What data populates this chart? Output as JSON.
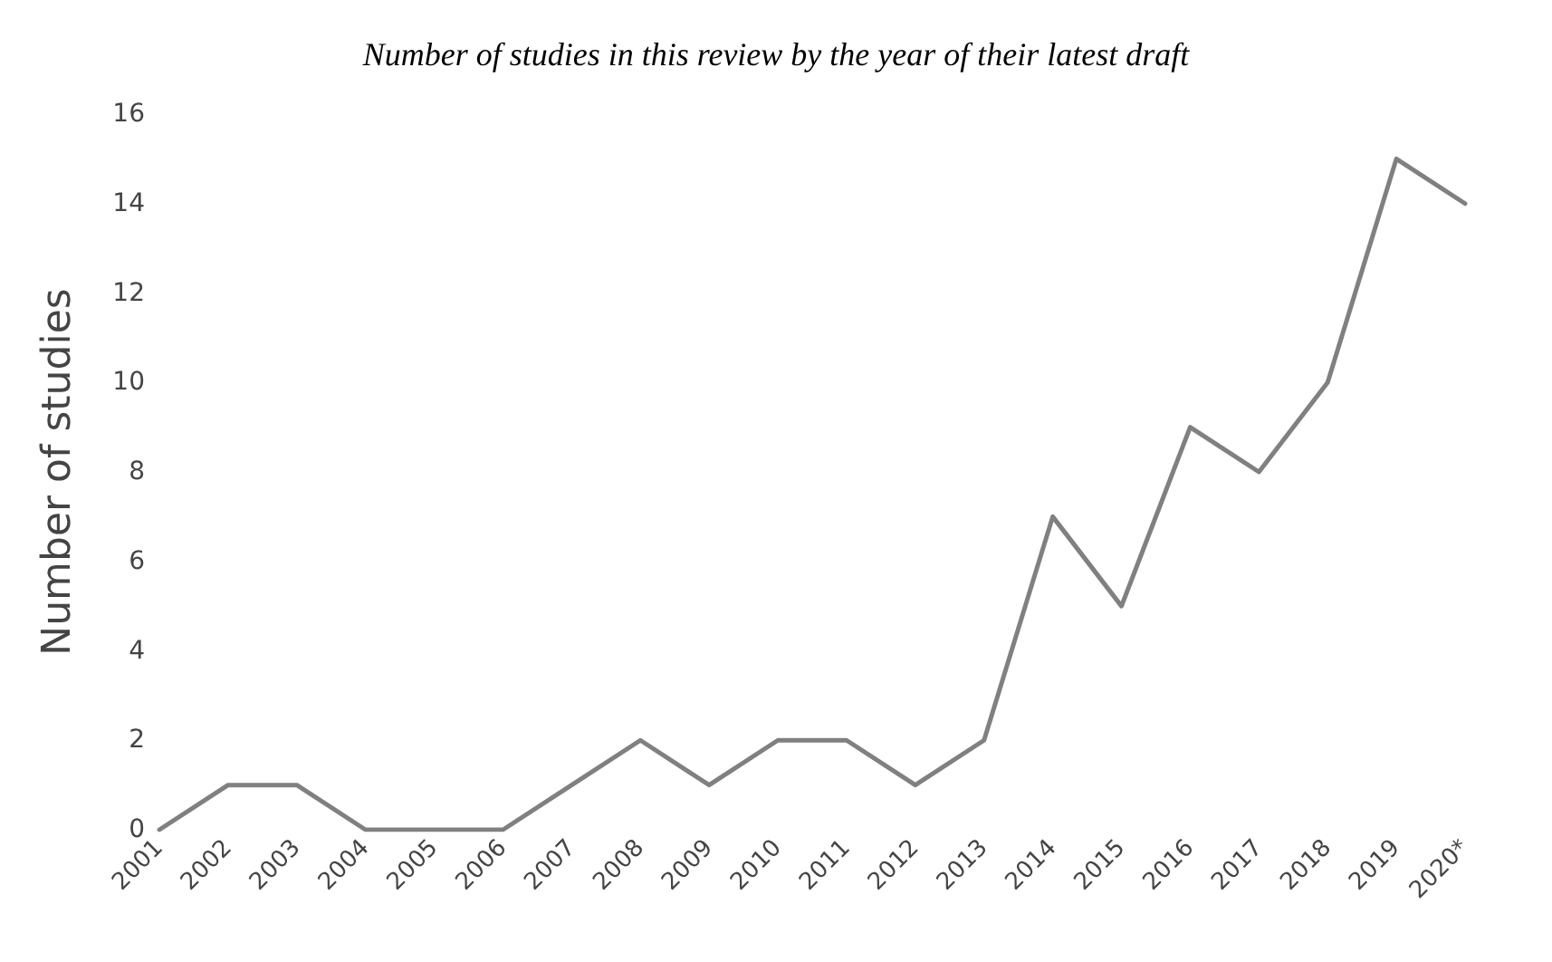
{
  "chart_data": {
    "type": "line",
    "title": "Number of studies in this review by the year of their latest draft",
    "ylabel": "Number of studies",
    "categories": [
      "2001",
      "2002",
      "2003",
      "2004",
      "2005",
      "2006",
      "2007",
      "2008",
      "2009",
      "2010",
      "2011",
      "2012",
      "2013",
      "2014",
      "2015",
      "2016",
      "2017",
      "2018",
      "2019",
      "2020*"
    ],
    "series": [
      {
        "color": "#808080",
        "values": [
          0,
          1,
          1,
          0,
          0,
          0,
          1,
          2,
          1,
          2,
          2,
          1,
          2,
          7,
          5,
          9,
          8,
          10,
          15,
          14
        ]
      }
    ],
    "ylim": [
      0,
      16
    ],
    "yticks": [
      0,
      2,
      4,
      6,
      8,
      10,
      12,
      14,
      16
    ],
    "marker": "none"
  }
}
